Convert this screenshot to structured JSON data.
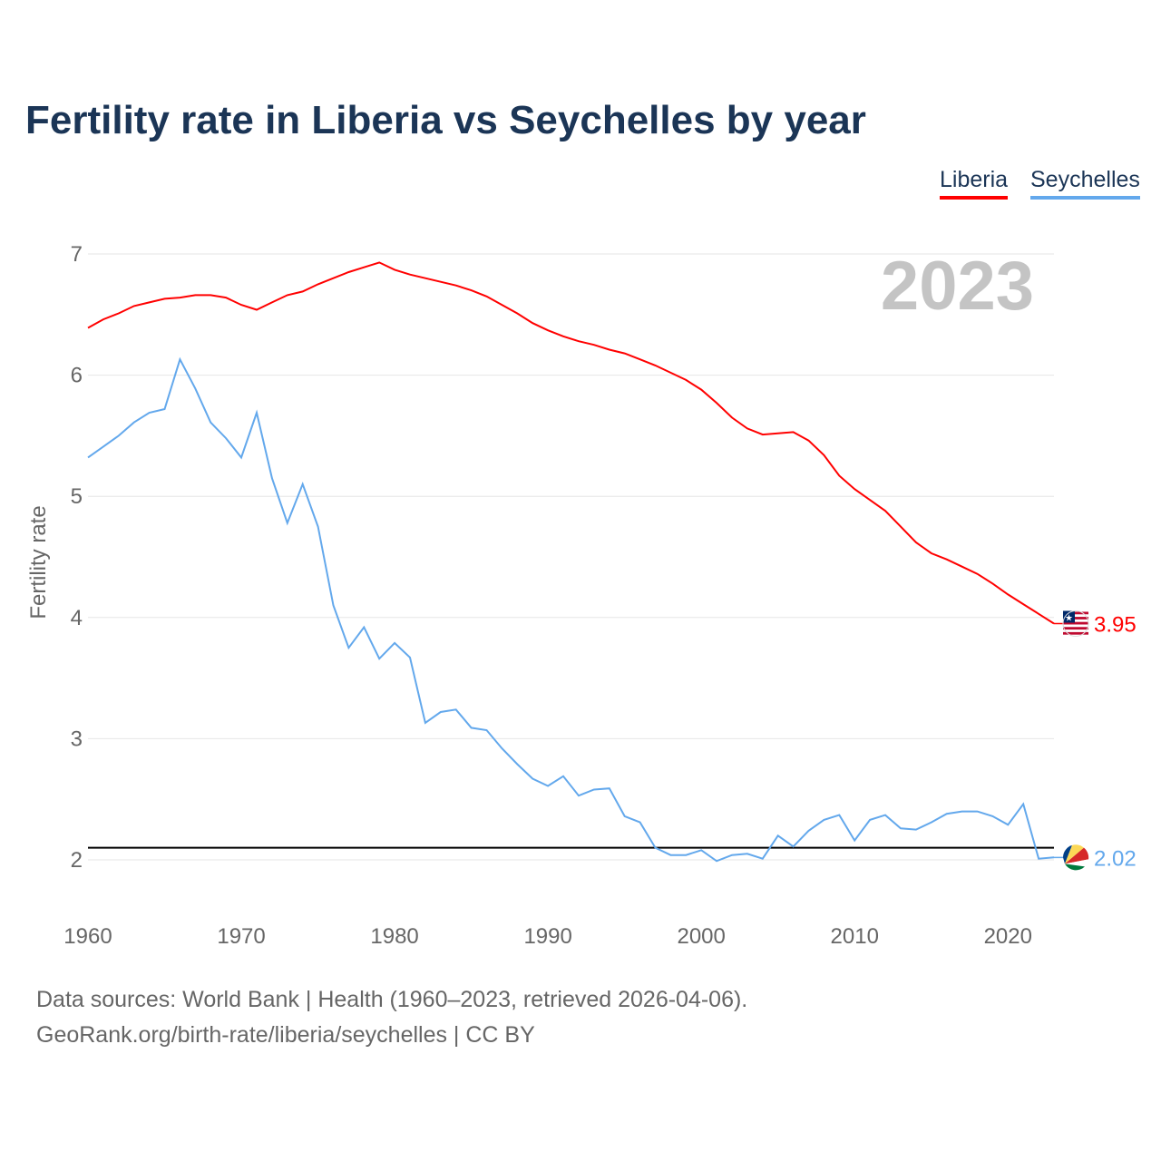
{
  "title": "Fertility rate in Liberia vs Seychelles by year",
  "footer": {
    "line1": "Data sources: World Bank | Health (1960–2023, retrieved 2026-04-06).",
    "line2": "GeoRank.org/birth-rate/liberia/seychelles | CC BY"
  },
  "chart_data": {
    "type": "line",
    "title": "Fertility rate in Liberia vs Seychelles by year",
    "xlabel": "",
    "ylabel": "Fertility rate",
    "year_label": "2023",
    "xlim": [
      1960,
      2023
    ],
    "ylim": [
      2,
      7
    ],
    "xticks": [
      "1960",
      "1970",
      "1980",
      "1990",
      "2000",
      "2010",
      "2020"
    ],
    "yticks": [
      "2",
      "3",
      "4",
      "5",
      "6",
      "7"
    ],
    "grid": true,
    "legend_position": "top-right",
    "reference_line": 2.1,
    "x": [
      1960,
      1961,
      1962,
      1963,
      1964,
      1965,
      1966,
      1967,
      1968,
      1969,
      1970,
      1971,
      1972,
      1973,
      1974,
      1975,
      1976,
      1977,
      1978,
      1979,
      1980,
      1981,
      1982,
      1983,
      1984,
      1985,
      1986,
      1987,
      1988,
      1989,
      1990,
      1991,
      1992,
      1993,
      1994,
      1995,
      1996,
      1997,
      1998,
      1999,
      2000,
      2001,
      2002,
      2003,
      2004,
      2005,
      2006,
      2007,
      2008,
      2009,
      2010,
      2011,
      2012,
      2013,
      2014,
      2015,
      2016,
      2017,
      2018,
      2019,
      2020,
      2021,
      2022,
      2023
    ],
    "series": [
      {
        "name": "Liberia",
        "color": "#ff0000",
        "end_label": "3.95",
        "values": [
          6.39,
          6.46,
          6.51,
          6.57,
          6.6,
          6.63,
          6.64,
          6.66,
          6.66,
          6.64,
          6.58,
          6.54,
          6.6,
          6.66,
          6.69,
          6.75,
          6.8,
          6.85,
          6.89,
          6.93,
          6.87,
          6.83,
          6.8,
          6.77,
          6.74,
          6.7,
          6.65,
          6.58,
          6.51,
          6.43,
          6.37,
          6.32,
          6.28,
          6.25,
          6.21,
          6.18,
          6.13,
          6.08,
          6.02,
          5.96,
          5.88,
          5.77,
          5.65,
          5.56,
          5.51,
          5.52,
          5.53,
          5.46,
          5.34,
          5.17,
          5.06,
          4.97,
          4.88,
          4.75,
          4.62,
          4.53,
          4.48,
          4.42,
          4.36,
          4.28,
          4.19,
          4.11,
          4.03,
          3.95
        ]
      },
      {
        "name": "Seychelles",
        "color": "#63a8ec",
        "end_label": "2.02",
        "values": [
          5.32,
          5.41,
          5.5,
          5.61,
          5.69,
          5.72,
          6.13,
          5.89,
          5.61,
          5.48,
          5.32,
          5.69,
          5.15,
          4.78,
          5.1,
          4.75,
          4.1,
          3.75,
          3.92,
          3.66,
          3.79,
          3.67,
          3.13,
          3.22,
          3.24,
          3.09,
          3.07,
          2.92,
          2.79,
          2.67,
          2.61,
          2.69,
          2.53,
          2.58,
          2.59,
          2.36,
          2.31,
          2.1,
          2.04,
          2.04,
          2.08,
          1.99,
          2.04,
          2.05,
          2.01,
          2.2,
          2.11,
          2.24,
          2.33,
          2.37,
          2.16,
          2.33,
          2.37,
          2.26,
          2.25,
          2.31,
          2.38,
          2.4,
          2.4,
          2.36,
          2.29,
          2.46,
          2.01,
          2.02
        ]
      }
    ]
  }
}
